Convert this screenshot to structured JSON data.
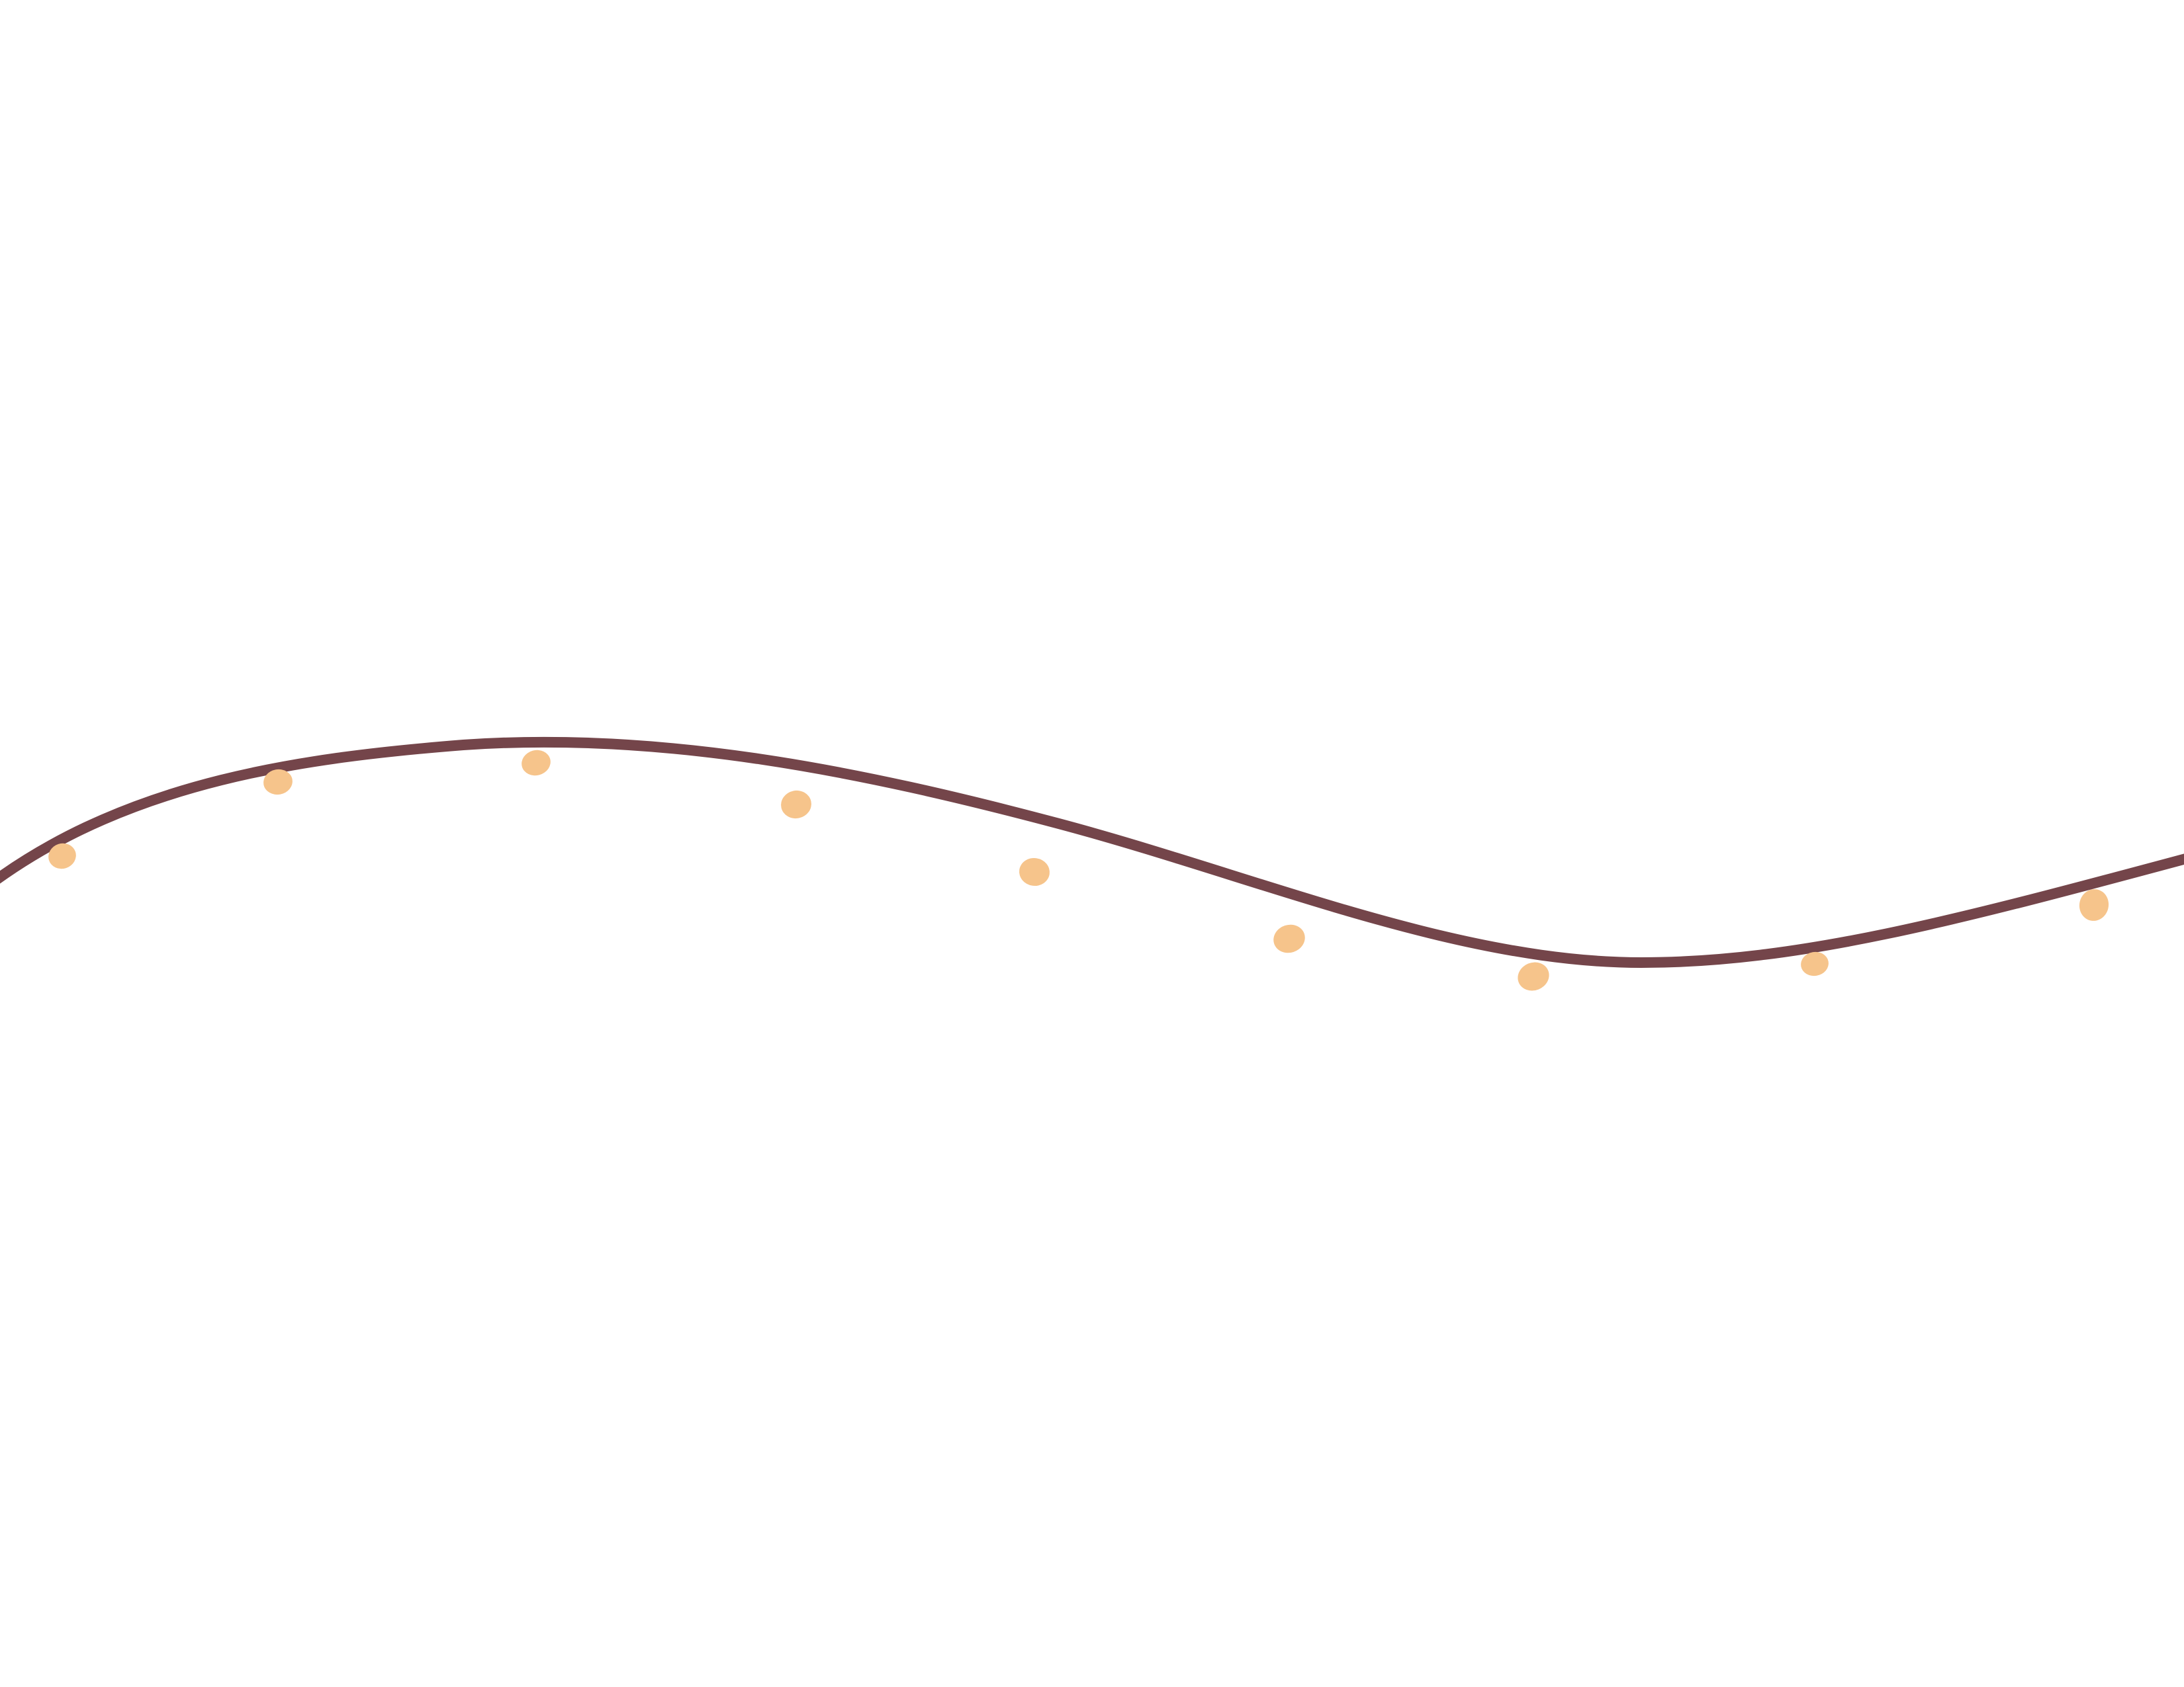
{
  "illustration": {
    "subject": "string-lights",
    "bulb_count": 9,
    "colors": {
      "background": "#ffffff",
      "wire": "#74454a",
      "bulb": "#f6c48b"
    }
  }
}
